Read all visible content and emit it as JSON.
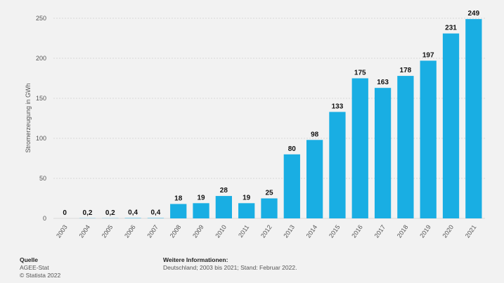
{
  "chart_data": {
    "type": "bar",
    "categories": [
      "2003",
      "2004",
      "2005",
      "2006",
      "2007",
      "2008",
      "2009",
      "2010",
      "2011",
      "2012",
      "2013",
      "2014",
      "2015",
      "2016",
      "2017",
      "2018",
      "2019",
      "2020",
      "2021"
    ],
    "values": [
      0,
      0.2,
      0.2,
      0.4,
      0.4,
      18,
      19,
      28,
      19,
      25,
      80,
      98,
      133,
      175,
      163,
      178,
      197,
      231,
      249
    ],
    "value_labels": [
      "0",
      "0,2",
      "0,2",
      "0,4",
      "0,4",
      "18",
      "19",
      "28",
      "19",
      "25",
      "80",
      "98",
      "133",
      "175",
      "163",
      "178",
      "197",
      "231",
      "249"
    ],
    "ylabel": "Stromerzeugung in GWh",
    "xlabel": "",
    "ylim": [
      0,
      250
    ],
    "yticks": [
      0,
      50,
      100,
      150,
      200,
      250
    ],
    "grid": true,
    "bar_color": "#19aee3"
  },
  "footer": {
    "source_heading": "Quelle",
    "source_name": "AGEE-Stat",
    "copyright": "© Statista 2022",
    "info_heading": "Weitere Informationen:",
    "info_text": "Deutschland; 2003 bis 2021; Stand: Februar 2022."
  }
}
